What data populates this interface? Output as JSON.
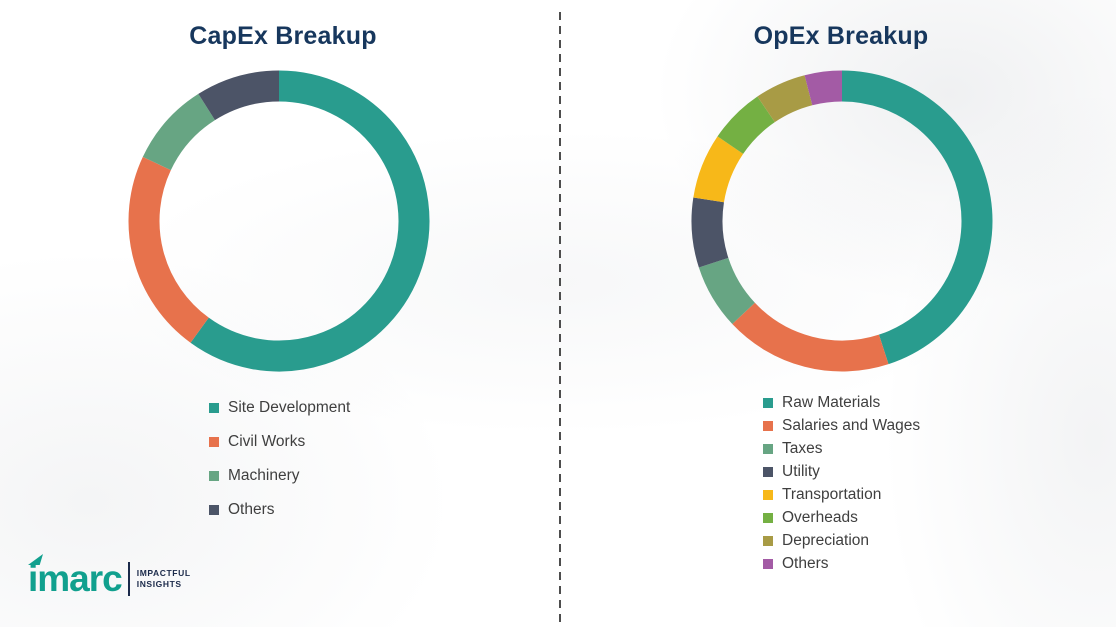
{
  "colors": {
    "title": "#17375D",
    "legend_text": "#3F3F3F",
    "divider": "#4D4D4D",
    "logo_teal": "#11A08E",
    "logo_navy": "#1B2A4A"
  },
  "chart_data": [
    {
      "type": "pie",
      "subtype": "donut",
      "title": "CapEx Breakup",
      "legend_position": "bottom-left",
      "segments": [
        {
          "label": "Site Development",
          "value": 60,
          "color": "#299C8E"
        },
        {
          "label": "Civil Works",
          "value": 22,
          "color": "#E7724C"
        },
        {
          "label": "Machinery",
          "value": 9,
          "color": "#67A583"
        },
        {
          "label": "Others",
          "value": 9,
          "color": "#4C5467"
        }
      ]
    },
    {
      "type": "pie",
      "subtype": "donut",
      "title": "OpEx Breakup",
      "legend_position": "bottom-left",
      "segments": [
        {
          "label": "Raw Materials",
          "value": 45,
          "color": "#299C8E"
        },
        {
          "label": "Salaries and Wages",
          "value": 18,
          "color": "#E7724C"
        },
        {
          "label": "Taxes",
          "value": 7,
          "color": "#67A583"
        },
        {
          "label": "Utility",
          "value": 7.5,
          "color": "#4C5467"
        },
        {
          "label": "Transportation",
          "value": 7,
          "color": "#F7B819"
        },
        {
          "label": "Overheads",
          "value": 6,
          "color": "#74B043"
        },
        {
          "label": "Depreciation",
          "value": 5.5,
          "color": "#A89B45"
        },
        {
          "label": "Others",
          "value": 4,
          "color": "#A35BA5"
        }
      ]
    }
  ],
  "logo": {
    "wordmark": "imarc",
    "tagline1": "IMPACTFUL",
    "tagline2": "INSIGHTS"
  }
}
